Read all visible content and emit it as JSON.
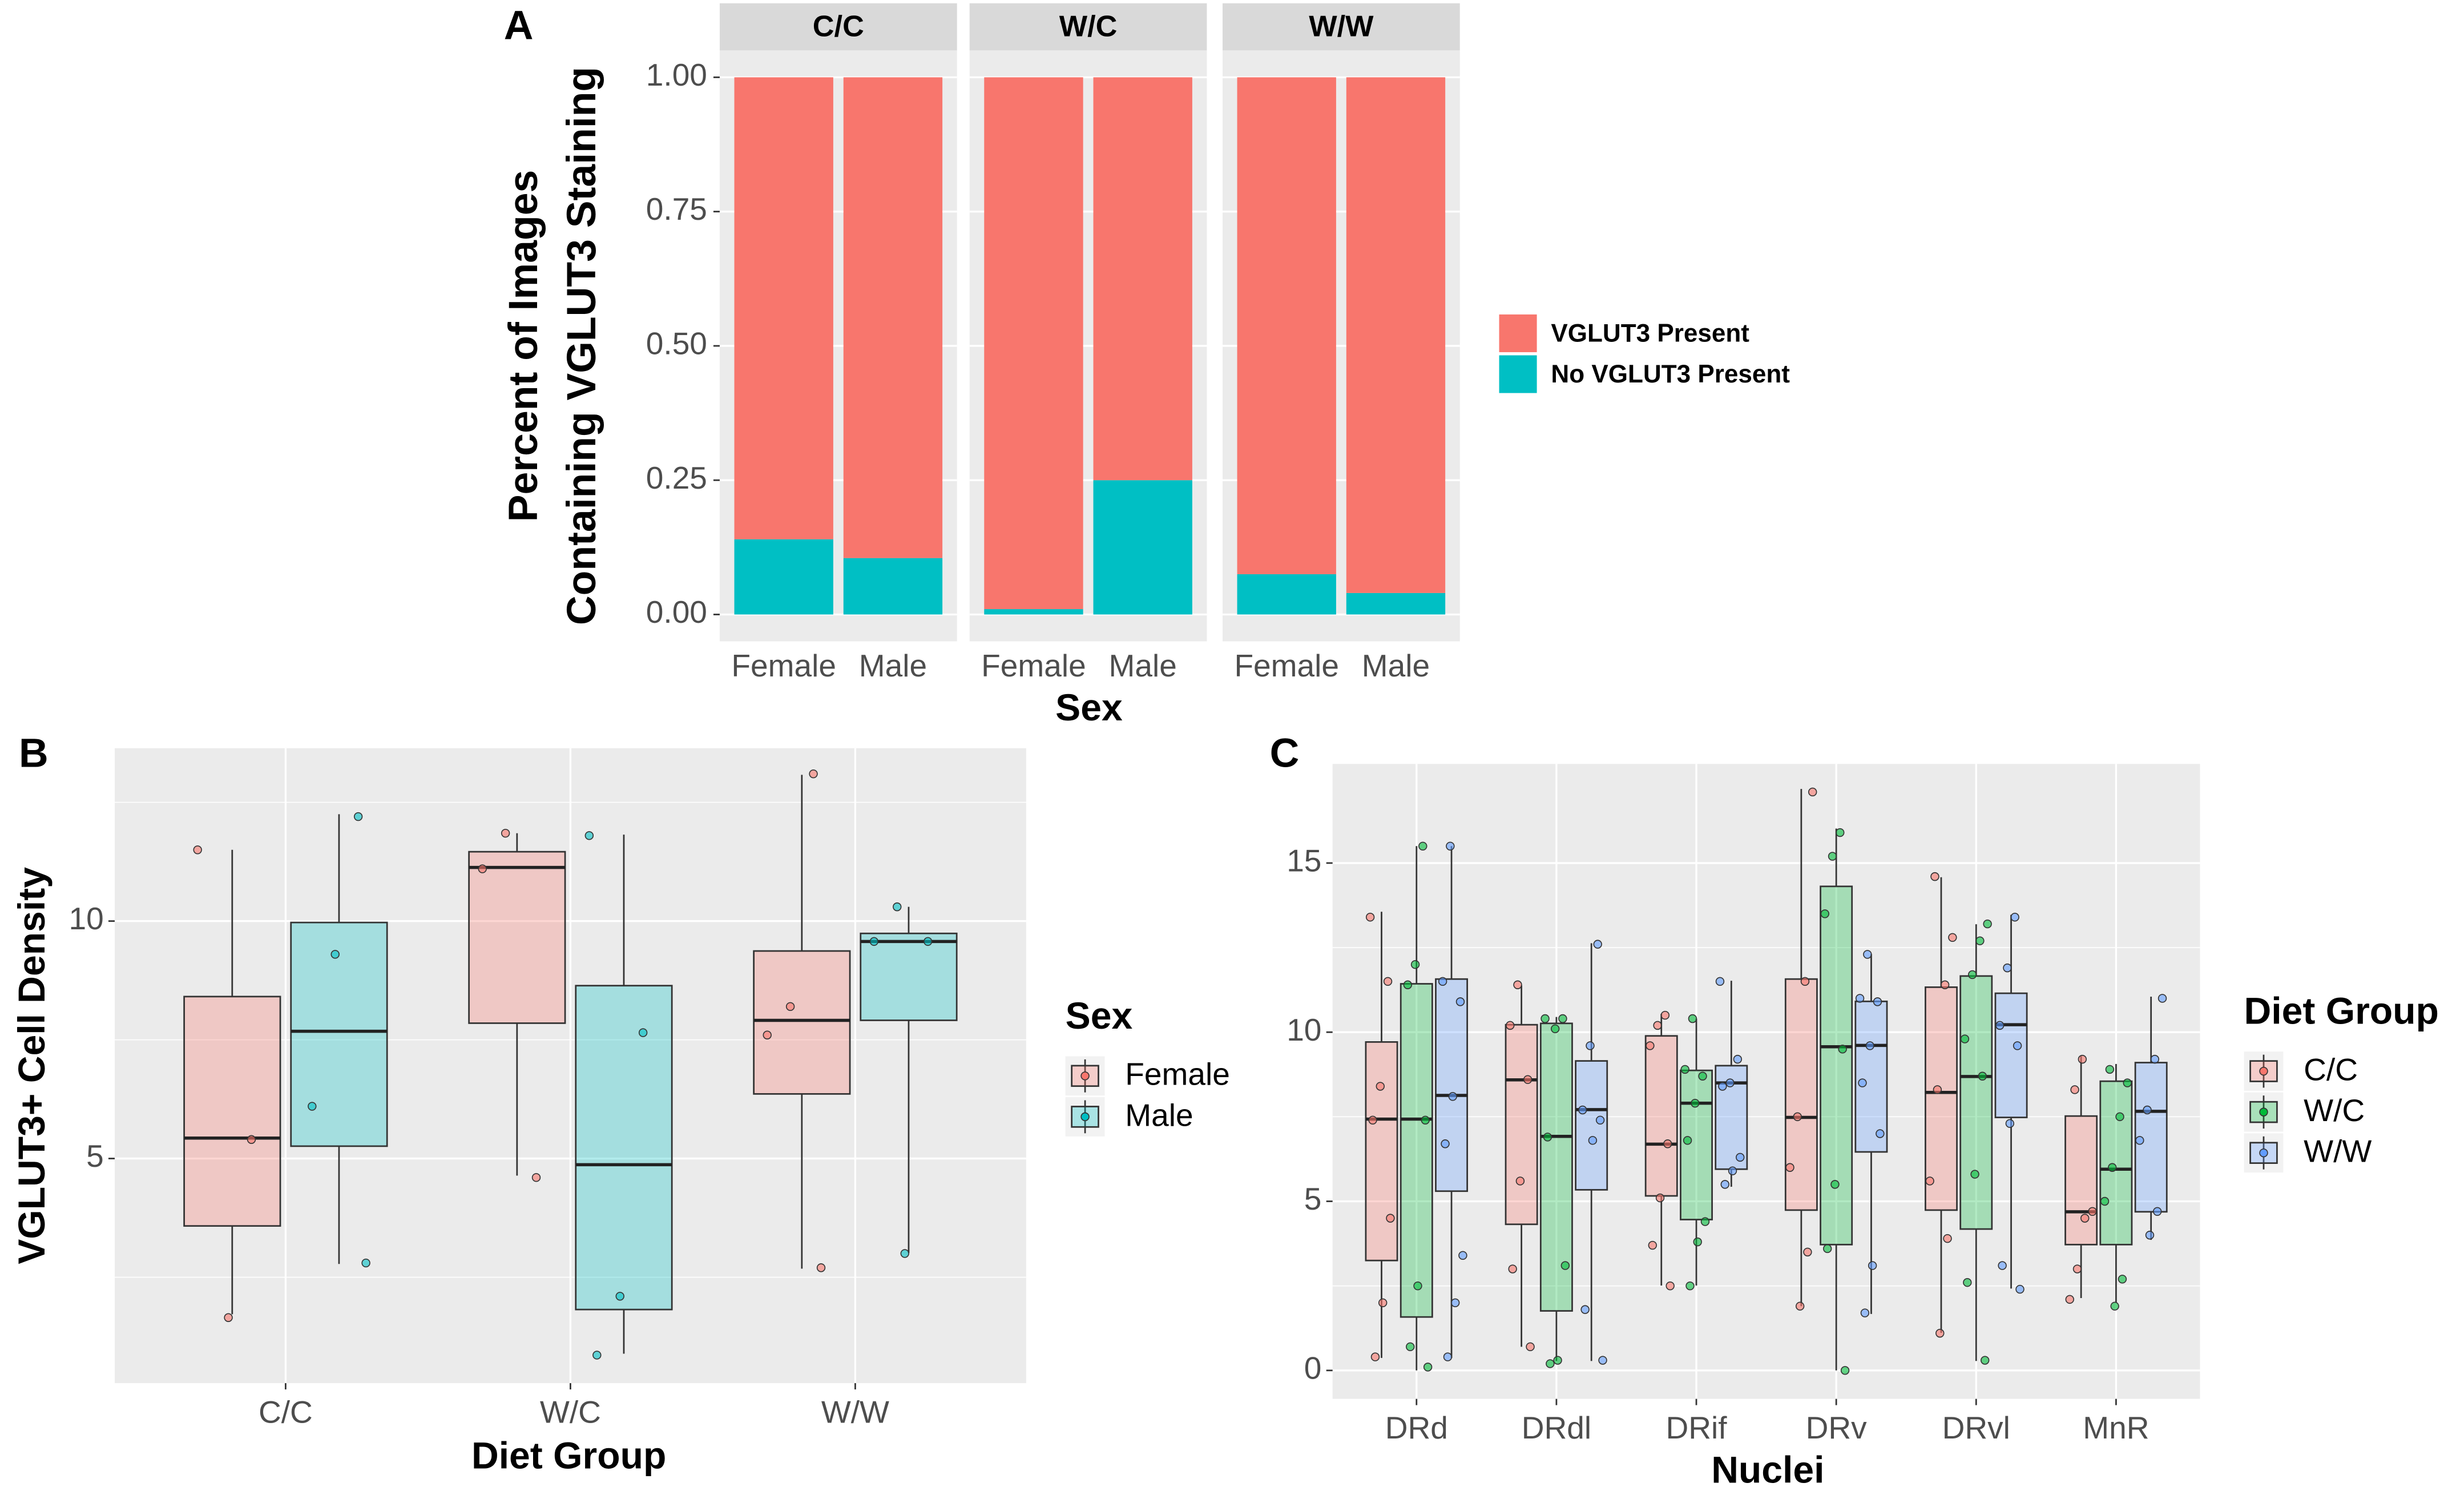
{
  "chart_data": [
    {
      "type": "bar",
      "stacked": true,
      "label": "A",
      "facets": [
        "C/C",
        "W/C",
        "W/W"
      ],
      "categories": [
        "Female",
        "Male",
        "Female",
        "Male",
        "Female",
        "Male"
      ],
      "series": [
        {
          "name": "VGLUT3 Present",
          "color": "#F8766D",
          "values": [
            0.86,
            0.895,
            0.99,
            0.75,
            0.925,
            0.96
          ]
        },
        {
          "name": "No VGLUT3 Present",
          "color": "#00BFC4",
          "values": [
            0.14,
            0.105,
            0.01,
            0.25,
            0.075,
            0.04
          ]
        }
      ],
      "ylim": [
        -0.05,
        1.05
      ],
      "yticks": [
        {
          "value": 0,
          "label": "0.00"
        },
        {
          "value": 0.25,
          "label": "0.25"
        },
        {
          "value": 0.5,
          "label": "0.50"
        },
        {
          "value": 0.75,
          "label": "0.75"
        },
        {
          "value": 1,
          "label": "1.00"
        }
      ],
      "ylabel": [
        "Percent of Images",
        "Containing VGLUT3 Staining"
      ],
      "xlabel": "Sex",
      "grid": true
    },
    {
      "type": "box",
      "label": "B",
      "categories": [
        "C/C",
        "W/C",
        "W/W"
      ],
      "legend_title": "Sex",
      "series": [
        {
          "name": "Female",
          "color": "#F8766D",
          "boxes": [
            {
              "min": 1.72,
              "q1": 3.58,
              "median": 5.43,
              "q3": 8.41,
              "max": 11.5,
              "points": [
                11.5,
                5.4,
                1.65
              ]
            },
            {
              "min": 4.64,
              "q1": 7.85,
              "median": 11.13,
              "q3": 11.46,
              "max": 11.85,
              "points": [
                11.85,
                11.1,
                4.6
              ]
            },
            {
              "min": 2.68,
              "q1": 6.36,
              "median": 7.91,
              "q3": 9.37,
              "max": 13.08,
              "points": [
                13.1,
                8.2,
                7.6,
                2.7
              ]
            }
          ]
        },
        {
          "name": "Male",
          "color": "#00BFC4",
          "boxes": [
            {
              "min": 2.78,
              "q1": 5.26,
              "median": 7.68,
              "q3": 9.97,
              "max": 12.25,
              "points": [
                12.2,
                9.3,
                6.1,
                2.8
              ]
            },
            {
              "min": 0.89,
              "q1": 1.82,
              "median": 4.87,
              "q3": 8.64,
              "max": 11.82,
              "points": [
                11.8,
                7.65,
                2.1,
                0.86
              ]
            },
            {
              "min": 3.01,
              "q1": 7.91,
              "median": 9.57,
              "q3": 9.74,
              "max": 10.3,
              "points": [
                10.3,
                9.57,
                9.57,
                3.0
              ]
            }
          ]
        }
      ],
      "ylim": [
        0.27,
        13.64
      ],
      "yticks": [
        5,
        10
      ],
      "minor_yticks": [
        2.5,
        7.5,
        12.5
      ],
      "ylabel": "VGLUT3+ Cell Density",
      "xlabel": "Diet Group",
      "grid": true
    },
    {
      "type": "box",
      "label": "C",
      "categories": [
        "DRd",
        "DRdl",
        "DRif",
        "DRv",
        "DRvl",
        "MnR"
      ],
      "legend_title": "Diet Group",
      "series": [
        {
          "name": "C/C",
          "color": "#F8766D",
          "boxes": [
            {
              "min": 0.37,
              "q1": 3.25,
              "median": 7.43,
              "q3": 9.71,
              "max": 13.56,
              "points": [
                13.4,
                11.5,
                8.4,
                7.4,
                4.5,
                2.0,
                0.4
              ]
            },
            {
              "min": 0.7,
              "q1": 4.32,
              "median": 8.59,
              "q3": 10.22,
              "max": 11.38,
              "points": [
                11.4,
                10.2,
                8.6,
                5.6,
                3.0,
                0.7
              ]
            },
            {
              "min": 2.51,
              "q1": 5.16,
              "median": 6.69,
              "q3": 9.89,
              "max": 10.54,
              "points": [
                10.5,
                10.2,
                9.6,
                6.7,
                5.1,
                3.7,
                2.5
              ]
            },
            {
              "min": 1.9,
              "q1": 4.74,
              "median": 7.48,
              "q3": 11.57,
              "max": 17.19,
              "points": [
                17.1,
                11.5,
                7.5,
                6.0,
                3.5,
                1.9
              ]
            },
            {
              "min": 1.11,
              "q1": 4.74,
              "median": 8.22,
              "q3": 11.33,
              "max": 14.58,
              "points": [
                14.6,
                12.8,
                11.4,
                8.3,
                5.6,
                3.9,
                1.1
              ]
            },
            {
              "min": 2.14,
              "q1": 3.72,
              "median": 4.69,
              "q3": 7.52,
              "max": 9.29,
              "points": [
                9.2,
                8.3,
                4.7,
                4.5,
                3.0,
                2.1
              ]
            }
          ]
        },
        {
          "name": "W/C",
          "color": "#00BA38",
          "boxes": [
            {
              "min": 0,
              "q1": 1.58,
              "median": 7.43,
              "q3": 11.43,
              "max": 15.5,
              "points": [
                15.5,
                12.0,
                11.4,
                7.4,
                2.5,
                0.7,
                0.1
              ]
            },
            {
              "min": 0.28,
              "q1": 1.76,
              "median": 6.92,
              "q3": 10.26,
              "max": 10.45,
              "points": [
                10.4,
                10.4,
                10.1,
                6.9,
                3.1,
                0.3,
                0.2
              ]
            },
            {
              "min": 2.51,
              "q1": 4.46,
              "median": 7.9,
              "q3": 8.87,
              "max": 10.4,
              "points": [
                10.4,
                8.9,
                8.7,
                7.9,
                6.8,
                4.4,
                3.8,
                2.5
              ]
            },
            {
              "min": 0,
              "q1": 3.72,
              "median": 9.57,
              "q3": 14.31,
              "max": 16.02,
              "points": [
                15.9,
                15.2,
                13.5,
                9.5,
                5.5,
                3.6,
                0
              ]
            },
            {
              "min": 0.28,
              "q1": 4.18,
              "median": 8.69,
              "q3": 11.66,
              "max": 13.19,
              "points": [
                13.2,
                12.7,
                11.7,
                9.8,
                8.7,
                5.8,
                2.6,
                0.3
              ]
            },
            {
              "min": 2.0,
              "q1": 3.72,
              "median": 5.95,
              "q3": 8.55,
              "max": 9.06,
              "points": [
                8.9,
                8.5,
                7.5,
                6.0,
                5.0,
                2.7,
                1.9
              ]
            }
          ]
        },
        {
          "name": "W/W",
          "color": "#619CFF",
          "boxes": [
            {
              "min": 0.37,
              "q1": 5.3,
              "median": 8.13,
              "q3": 11.57,
              "max": 15.5,
              "points": [
                15.5,
                11.5,
                10.9,
                8.1,
                6.7,
                3.4,
                2.0,
                0.4
              ]
            },
            {
              "min": 0.28,
              "q1": 5.34,
              "median": 7.71,
              "q3": 9.15,
              "max": 12.63,
              "points": [
                12.6,
                9.6,
                7.7,
                7.4,
                6.8,
                1.8,
                0.3
              ]
            },
            {
              "min": 5.43,
              "q1": 5.95,
              "median": 8.5,
              "q3": 9.01,
              "max": 11.52,
              "points": [
                11.5,
                9.2,
                8.5,
                8.4,
                6.3,
                5.9,
                5.5
              ]
            },
            {
              "min": 1.67,
              "q1": 6.46,
              "median": 9.61,
              "q3": 10.91,
              "max": 12.31,
              "points": [
                12.3,
                11.0,
                10.9,
                9.6,
                8.5,
                7.0,
                3.1,
                1.7
              ]
            },
            {
              "min": 2.42,
              "q1": 7.48,
              "median": 10.22,
              "q3": 11.15,
              "max": 13.47,
              "points": [
                13.4,
                11.9,
                10.2,
                9.6,
                7.3,
                3.1,
                2.4
              ]
            },
            {
              "min": 3.86,
              "q1": 4.69,
              "median": 7.66,
              "q3": 9.1,
              "max": 11.05,
              "points": [
                11.0,
                9.2,
                7.7,
                6.8,
                4.7,
                4.0
              ]
            }
          ]
        }
      ],
      "ylim": [
        -0.84,
        17.93
      ],
      "yticks": [
        0,
        5,
        10,
        15
      ],
      "minor_yticks": [
        2.5,
        7.5,
        12.5
      ],
      "ylabel": null,
      "xlabel": "Nuclei",
      "grid": true
    }
  ]
}
